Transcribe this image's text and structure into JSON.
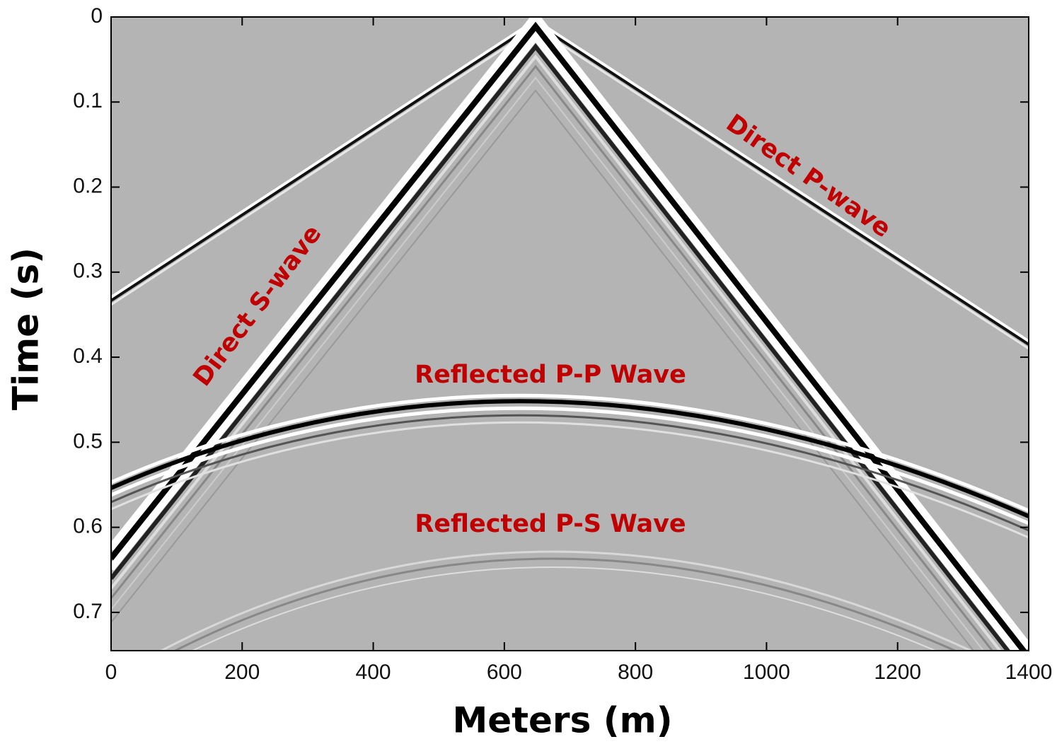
{
  "chart_data": {
    "type": "image",
    "xlabel": "Meters (m)",
    "ylabel": "Time (s)",
    "xlim": [
      0,
      1400
    ],
    "ylim": [
      0,
      0.745
    ],
    "y_inverted": true,
    "xticks": [
      0,
      200,
      400,
      600,
      800,
      1000,
      1200,
      1400
    ],
    "yticks": [
      0,
      0.1,
      0.2,
      0.3,
      0.4,
      0.5,
      0.6,
      0.7
    ],
    "annotations": [
      "Direct S-wave",
      "Direct P-wave",
      "Reflected P-P Wave",
      "Reflected P-S Wave"
    ]
  }
}
